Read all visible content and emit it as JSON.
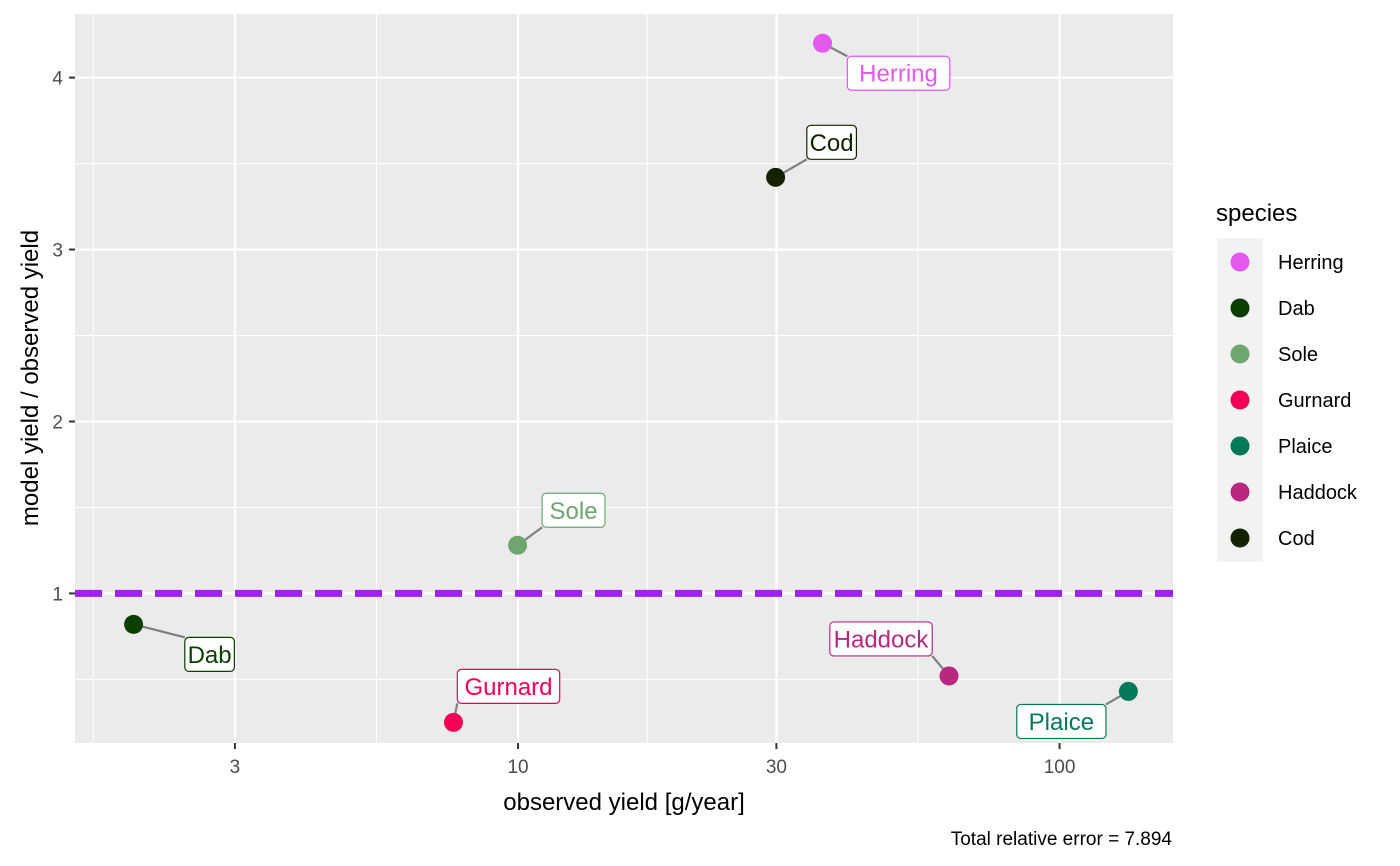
{
  "chart_data": {
    "type": "scatter",
    "xlabel": "observed yield [g/year]",
    "ylabel": "model yield / observed yield",
    "x_scale": "log10",
    "xlim": [
      1.52,
      162
    ],
    "ylim": [
      0.13,
      4.37
    ],
    "x_ticks": [
      3,
      10,
      30,
      100
    ],
    "x_tick_labels": [
      "3",
      "10",
      "30",
      "100"
    ],
    "y_ticks": [
      1,
      2,
      3,
      4
    ],
    "y_tick_labels": [
      "1",
      "2",
      "3",
      "4"
    ],
    "grid": true,
    "reference_line": {
      "y": 1,
      "color": "#A020F0",
      "style": "dashed"
    },
    "legend": {
      "title": "species",
      "position": "right"
    },
    "series": [
      {
        "name": "Herring",
        "color": "#E358EF",
        "x": 36.5,
        "y": 4.2,
        "label": "Herring",
        "label_dir": "below-right"
      },
      {
        "name": "Dab",
        "color": "#0B3F00",
        "x": 1.95,
        "y": 0.82,
        "label": "Dab",
        "label_dir": "below-right"
      },
      {
        "name": "Sole",
        "color": "#6FA56E",
        "x": 9.98,
        "y": 1.28,
        "label": "Sole",
        "label_dir": "above-right"
      },
      {
        "name": "Gurnard",
        "color": "#F10056",
        "x": 7.6,
        "y": 0.25,
        "label": "Gurnard",
        "label_dir": "above"
      },
      {
        "name": "Plaice",
        "color": "#007A58",
        "x": 134,
        "y": 0.43,
        "label": "Plaice",
        "label_dir": "below-left"
      },
      {
        "name": "Haddock",
        "color": "#B8287E",
        "x": 62.5,
        "y": 0.52,
        "label": "Haddock",
        "label_dir": "above-left"
      },
      {
        "name": "Cod",
        "color": "#132200",
        "x": 29.9,
        "y": 3.42,
        "label": "Cod",
        "label_dir": "above-right"
      }
    ],
    "caption": "Total relative error = 7.894"
  }
}
